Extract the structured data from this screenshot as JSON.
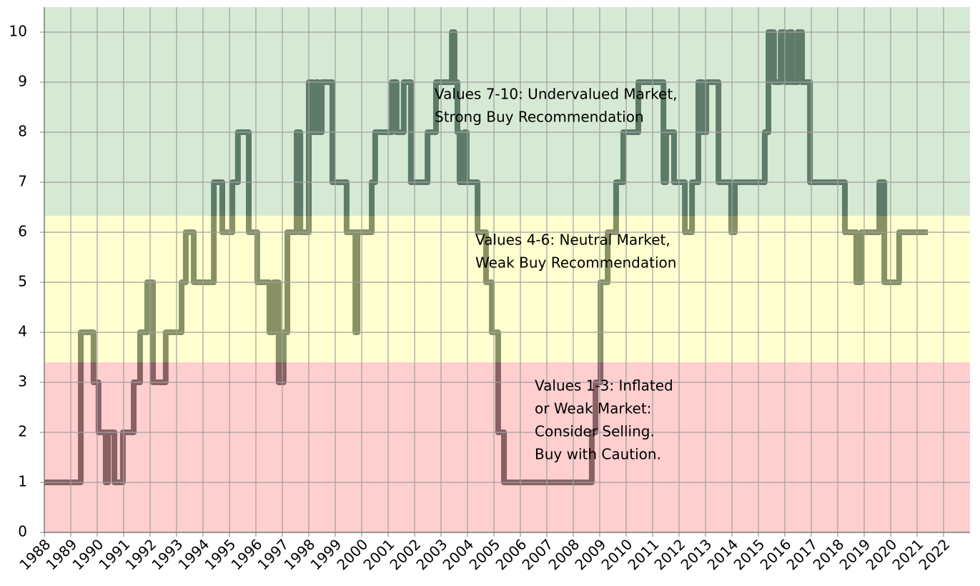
{
  "chart_data": {
    "type": "step",
    "xlim": [
      1988,
      2023
    ],
    "ylim": [
      0,
      10.5
    ],
    "xticks": [
      1988,
      1989,
      1990,
      1991,
      1992,
      1993,
      1994,
      1995,
      1996,
      1997,
      1998,
      1999,
      2000,
      2001,
      2002,
      2003,
      2004,
      2005,
      2006,
      2007,
      2008,
      2009,
      2010,
      2011,
      2012,
      2013,
      2014,
      2015,
      2016,
      2017,
      2018,
      2019,
      2020,
      2021,
      2022
    ],
    "yticks": [
      0,
      1,
      2,
      3,
      4,
      5,
      6,
      7,
      8,
      9,
      10
    ],
    "grid": true,
    "series": [
      {
        "color": "#0f2228",
        "x": [
          1988.0,
          1989.38,
          1989.86,
          1990.05,
          1990.32,
          1990.41,
          1990.65,
          1990.97,
          1991.38,
          1991.62,
          1991.89,
          1992.11,
          1992.59,
          1993.19,
          1993.35,
          1993.65,
          1994.41,
          1994.73,
          1995.11,
          1995.32,
          1995.73,
          1996.05,
          1996.51,
          1996.68,
          1996.86,
          1997.05,
          1997.19,
          1997.54,
          1997.68,
          1998.0,
          1998.16,
          1998.27,
          1998.35,
          1998.49,
          1998.89,
          1999.43,
          1999.76,
          1999.84,
          2000.38,
          2000.51,
          2001.14,
          2001.32,
          2001.59,
          2001.86,
          2002.49,
          2002.81,
          2003.41,
          2003.51,
          2003.62,
          2003.7,
          2003.89,
          2003.97,
          2004.38,
          2004.7,
          2004.92,
          2005.16,
          2005.38,
          2008.7,
          2008.84,
          2009.03,
          2009.3,
          2009.62,
          2009.89,
          2010.46,
          2011.41,
          2011.51,
          2011.81,
          2012.22,
          2012.49,
          2012.73,
          2012.89,
          2013.03,
          2013.49,
          2013.97,
          2014.11,
          2015.24,
          2015.38,
          2015.59,
          2015.84,
          2016.0,
          2016.16,
          2016.27,
          2016.49,
          2016.65,
          2016.95,
          2018.27,
          2018.7,
          2018.89,
          2019.57,
          2019.76,
          2020.32,
          2021.41
        ],
        "values": [
          1,
          4,
          3,
          2,
          1,
          2,
          1,
          2,
          3,
          4,
          5,
          3,
          4,
          5,
          6,
          5,
          7,
          6,
          7,
          8,
          6,
          5,
          4,
          5,
          3,
          4,
          6,
          8,
          6,
          9,
          8,
          9,
          8,
          9,
          7,
          6,
          4,
          6,
          7,
          8,
          9,
          8,
          9,
          7,
          8,
          9,
          10,
          9,
          8,
          7,
          8,
          7,
          6,
          5,
          4,
          2,
          1,
          2,
          3,
          5,
          6,
          7,
          8,
          9,
          7,
          8,
          7,
          6,
          7,
          9,
          8,
          9,
          7,
          6,
          7,
          8,
          10,
          9,
          10,
          9,
          10,
          9,
          10,
          9,
          7,
          6,
          5,
          6,
          7,
          5,
          6,
          6
        ]
      }
    ],
    "bands": [
      {
        "from": 6.33,
        "to": 10.5,
        "color": "#aed3aa"
      },
      {
        "from": 3.4,
        "to": 6.33,
        "color": "#ffffa0"
      },
      {
        "from": 0,
        "to": 3.4,
        "color": "#ffa0a0"
      }
    ],
    "annotations": [
      [
        "Values 7-10: Undervalued Market,",
        "Strong Buy Recommendation"
      ],
      [
        "Values 4-6: Neutral Market,",
        "Weak Buy Recommendation"
      ],
      [
        "Values 1-3: Inflated",
        "or Weak Market:",
        "Consider Selling.",
        "Buy with Caution."
      ]
    ]
  }
}
